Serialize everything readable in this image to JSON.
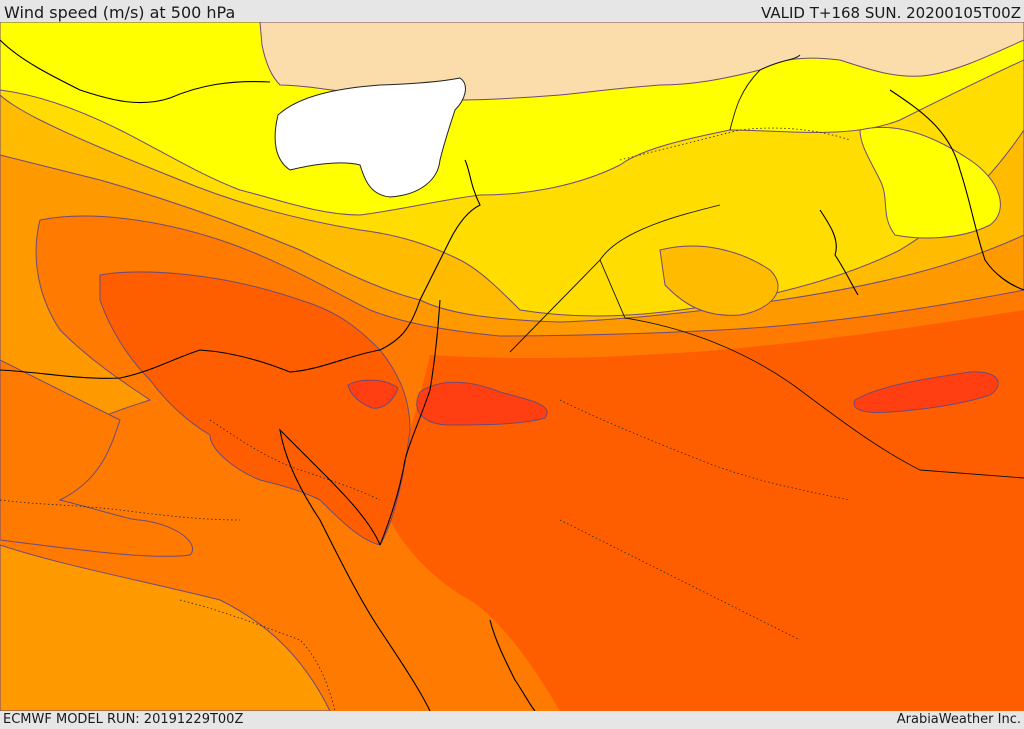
{
  "header": {
    "title": "Wind speed (m/s) at 500 hPa",
    "valid": "VALID T+168 SUN. 20200105T00Z"
  },
  "footer": {
    "model_run": "ECMWF MODEL RUN: 20191229T00Z",
    "credit": "ArabiaWeather Inc."
  },
  "palette": {
    "band_lightest": "#fbdcab",
    "band_yellow": "#ffff00",
    "band_yellow_orange": "#ffdd00",
    "band_gold": "#ffbb00",
    "band_orange": "#ff9900",
    "band_dark_orange": "#ff7a00",
    "band_red_orange": "#ff5e00",
    "band_red": "#ff3e12",
    "land_mask": "#ffffff",
    "coastline": "#000000",
    "contour": "#6e4a7a"
  }
}
